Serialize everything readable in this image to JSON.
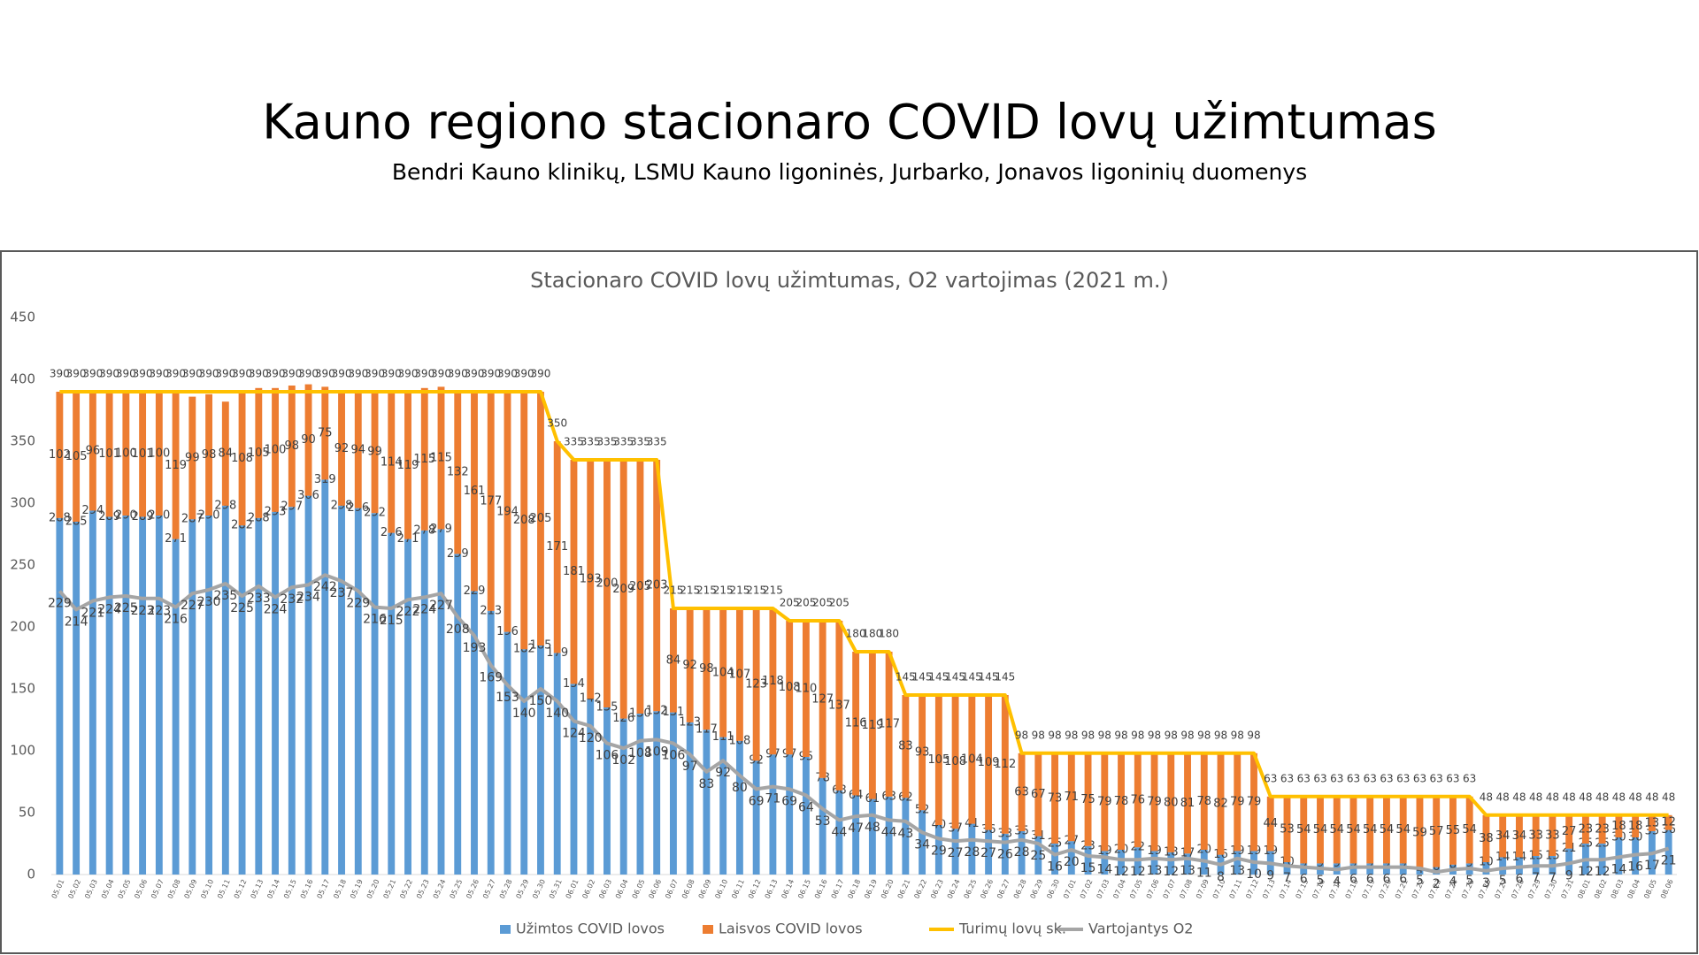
{
  "header": {
    "title": "Kauno regiono stacionaro COVID lovų užimtumas",
    "subtitle": "Bendri Kauno klinikų, LSMU Kauno ligoninės, Jurbarko, Jonavos ligoninių duomenys"
  },
  "chart_data": {
    "type": "bar",
    "stacked": true,
    "title": "Stacionaro COVID lovų užimtumas, O2 vartojimas (2021 m.)",
    "categories": [
      "05.01",
      "05.02",
      "05.03",
      "05.04",
      "05.05",
      "05.06",
      "05.07",
      "05.08",
      "05.09",
      "05.10",
      "05.11",
      "05.12",
      "05.13",
      "05.14",
      "05.15",
      "05.16",
      "05.17",
      "05.18",
      "05.19",
      "05.20",
      "05.21",
      "05.22",
      "05.23",
      "05.24",
      "05.25",
      "05.26",
      "05.27",
      "05.28",
      "05.29",
      "05.30",
      "05.31",
      "06.01",
      "06.02",
      "06.03",
      "06.04",
      "06.05",
      "06.06",
      "06.07",
      "06.08",
      "06.09",
      "06.10",
      "06.11",
      "06.12",
      "06.13",
      "06.14",
      "06.15",
      "06.16",
      "06.17",
      "06.18",
      "06.19",
      "06.20",
      "06.21",
      "06.22",
      "06.23",
      "06.24",
      "06.25",
      "06.26",
      "06.27",
      "06.28",
      "06.29",
      "06.30",
      "07.01",
      "07.02",
      "07.03",
      "07.04",
      "07.05",
      "07.06",
      "07.07",
      "07.08",
      "07.09",
      "07.10",
      "07.11",
      "07.12",
      "07.13",
      "07.14",
      "07.15",
      "07.16",
      "07.17",
      "07.18",
      "07.19",
      "07.20",
      "07.21",
      "07.22",
      "07.23",
      "07.24",
      "07.25",
      "07.26",
      "07.27",
      "07.28",
      "07.29",
      "07.30",
      "07.31",
      "08.01",
      "08.02",
      "08.03",
      "08.04",
      "08.05",
      "08.06"
    ],
    "series": [
      {
        "name": "Užimtos COVID lovos",
        "type": "bar",
        "color": "#5b9bd5",
        "values": [
          288,
          285,
          294,
          289,
          290,
          289,
          290,
          271,
          287,
          290,
          298,
          282,
          288,
          293,
          297,
          306,
          319,
          298,
          296,
          292,
          276,
          271,
          278,
          279,
          259,
          229,
          213,
          196,
          182,
          185,
          179,
          154,
          142,
          135,
          126,
          130,
          132,
          131,
          123,
          117,
          111,
          108,
          92,
          97,
          97,
          95,
          78,
          68,
          64,
          61,
          63,
          62,
          52,
          40,
          37,
          41,
          36,
          33,
          35,
          31,
          25,
          27,
          23,
          19,
          20,
          22,
          19,
          18,
          17,
          20,
          16,
          19,
          19,
          19,
          10,
          9,
          9,
          9,
          9,
          9,
          9,
          9,
          4,
          6,
          8,
          9,
          10,
          14,
          14,
          15,
          15,
          21,
          25,
          25,
          30,
          30,
          35,
          36
        ]
      },
      {
        "name": "Laisvos COVID lovos",
        "type": "bar",
        "color": "#ed7d31",
        "values": [
          102,
          105,
          96,
          101,
          100,
          101,
          100,
          119,
          99,
          98,
          84,
          108,
          105,
          100,
          98,
          90,
          75,
          92,
          94,
          99,
          114,
          119,
          115,
          115,
          132,
          161,
          177,
          194,
          208,
          205,
          171,
          181,
          193,
          200,
          209,
          205,
          203,
          84,
          92,
          98,
          104,
          107,
          123,
          118,
          108,
          110,
          127,
          137,
          116,
          119,
          117,
          83,
          93,
          105,
          108,
          104,
          109,
          112,
          63,
          67,
          73,
          71,
          75,
          79,
          78,
          76,
          79,
          80,
          81,
          78,
          82,
          79,
          79,
          44,
          53,
          54,
          54,
          54,
          54,
          54,
          54,
          54,
          59,
          57,
          55,
          54,
          38,
          34,
          34,
          33,
          33,
          27,
          23,
          23,
          18,
          18,
          13,
          12
        ]
      },
      {
        "name": "Turimų lovų sk.",
        "type": "line",
        "color": "#ffc000",
        "values": [
          390,
          390,
          390,
          390,
          390,
          390,
          390,
          390,
          390,
          390,
          390,
          390,
          390,
          390,
          390,
          390,
          390,
          390,
          390,
          390,
          390,
          390,
          390,
          390,
          390,
          390,
          390,
          390,
          390,
          390,
          350,
          335,
          335,
          335,
          335,
          335,
          335,
          215,
          215,
          215,
          215,
          215,
          215,
          215,
          205,
          205,
          205,
          205,
          180,
          180,
          180,
          145,
          145,
          145,
          145,
          145,
          145,
          145,
          98,
          98,
          98,
          98,
          98,
          98,
          98,
          98,
          98,
          98,
          98,
          98,
          98,
          98,
          98,
          63,
          63,
          63,
          63,
          63,
          63,
          63,
          63,
          63,
          63,
          63,
          63,
          63,
          48,
          48,
          48,
          48,
          48,
          48,
          48,
          48,
          48,
          48,
          48,
          48
        ]
      },
      {
        "name": "Vartojantys O2",
        "type": "line",
        "color": "#a5a5a5",
        "values": [
          229,
          214,
          221,
          224,
          225,
          223,
          223,
          216,
          227,
          230,
          235,
          225,
          233,
          224,
          232,
          234,
          242,
          237,
          229,
          216,
          215,
          222,
          224,
          227,
          208,
          193,
          169,
          153,
          140,
          150,
          140,
          124,
          120,
          106,
          102,
          108,
          109,
          106,
          97,
          83,
          92,
          80,
          69,
          71,
          69,
          64,
          53,
          44,
          47,
          48,
          44,
          43,
          34,
          29,
          27,
          28,
          27,
          26,
          28,
          25,
          16,
          20,
          15,
          14,
          12,
          12,
          13,
          12,
          13,
          11,
          8,
          13,
          10,
          9,
          7,
          6,
          5,
          4,
          6,
          6,
          6,
          6,
          5,
          2,
          4,
          5,
          3,
          5,
          6,
          7,
          7,
          9,
          12,
          12,
          14,
          16,
          17,
          21
        ]
      }
    ],
    "ylim": [
      0,
      450
    ],
    "yticks": [
      0,
      50,
      100,
      150,
      200,
      250,
      300,
      350,
      400,
      450
    ],
    "grid": false,
    "legend": "bottom"
  }
}
